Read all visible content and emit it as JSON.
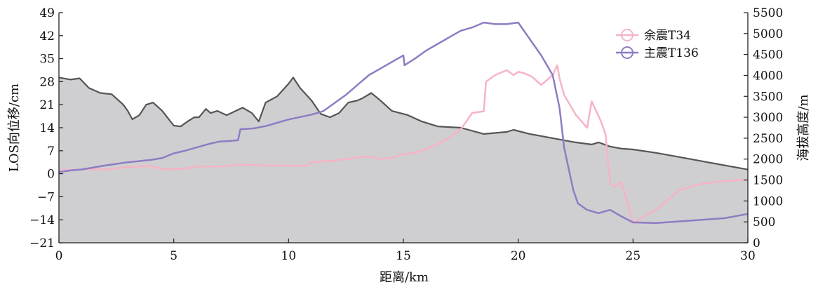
{
  "chart_data": {
    "type": "line",
    "xlabel": "距离/km",
    "ylabel_left": "LOS向位移/cm",
    "ylabel_right": "海拔高度/m",
    "xlim": [
      0,
      30
    ],
    "ylim_left": [
      -21,
      49
    ],
    "ylim_right": [
      0,
      5500
    ],
    "x_ticks": [
      0,
      5,
      10,
      15,
      20,
      25,
      30
    ],
    "y_left_ticks": [
      -21,
      -14,
      -7,
      0,
      7,
      14,
      21,
      28,
      35,
      42,
      49
    ],
    "y_right_ticks": [
      0,
      500,
      1000,
      1500,
      2000,
      2500,
      3000,
      3500,
      4000,
      4500,
      5000,
      5500
    ],
    "legend_position": "top-right",
    "colors": {
      "terrain_fill": "#cfcfd1",
      "terrain_line": "#555555",
      "aftershock": "#f6b3c6",
      "mainshock": "#8e7cc3"
    },
    "series": [
      {
        "name": "余震T34",
        "axis": "left",
        "x": [
          0,
          0.5,
          1,
          2,
          3,
          3.5,
          4,
          4.5,
          5,
          5.5,
          6,
          7,
          7.5,
          8,
          9,
          10,
          10.8,
          11,
          12,
          13,
          13.5,
          14,
          14.5,
          15,
          15.5,
          16,
          16.5,
          17,
          17.5,
          18,
          18.5,
          18.6,
          19,
          19.5,
          19.8,
          20,
          20.3,
          20.6,
          21,
          21.5,
          21.7,
          21.8,
          22,
          22.5,
          23,
          23.2,
          23.6,
          23.8,
          24,
          24.2,
          24.5,
          25,
          26,
          27,
          28,
          29,
          30
        ],
        "values": [
          1,
          1.2,
          1.3,
          1.3,
          2,
          2.2,
          2.3,
          1.5,
          1.3,
          1.6,
          2.2,
          2.2,
          2.5,
          2.8,
          2.5,
          2.5,
          2.3,
          3.5,
          4,
          5,
          5.3,
          4.5,
          4.8,
          6,
          6.3,
          7.5,
          9,
          11,
          13.5,
          18.5,
          19,
          28,
          30,
          31.5,
          30,
          31,
          30.5,
          29.5,
          27,
          30,
          33,
          29,
          24,
          18,
          14,
          22,
          16,
          12,
          -3,
          -4,
          -2.5,
          -15,
          -11,
          -5,
          -3,
          -2.2,
          -1.8
        ]
      },
      {
        "name": "主震T136",
        "axis": "left",
        "x": [
          0,
          0.5,
          1,
          2,
          3,
          4,
          4.5,
          5,
          5.5,
          6,
          6.5,
          7,
          7.5,
          7.8,
          7.9,
          8.5,
          9,
          9.5,
          10,
          11,
          11.5,
          12,
          12.5,
          13,
          13.5,
          14,
          14.5,
          15,
          15.05,
          15.5,
          16,
          16.5,
          17,
          17.5,
          18,
          18.5,
          19,
          19.5,
          20,
          20.5,
          21,
          21.5,
          21.8,
          22,
          22.4,
          22.6,
          23,
          23.5,
          24,
          24.5,
          25,
          26,
          27,
          28,
          29,
          30
        ],
        "values": [
          0.5,
          1,
          1.3,
          2.5,
          3.5,
          4.2,
          4.8,
          6.2,
          7,
          8,
          9,
          9.8,
          10,
          10.2,
          13.5,
          13.8,
          14.5,
          15.5,
          16.5,
          18,
          19,
          21.5,
          24,
          27,
          30,
          32,
          34,
          36,
          33,
          35,
          37.5,
          39.5,
          41.5,
          43.5,
          44.5,
          46,
          45.5,
          45.5,
          46,
          41,
          36,
          30,
          20,
          8,
          -5,
          -9,
          -11,
          -12,
          -11,
          -13,
          -14.8,
          -15,
          -14.5,
          -14,
          -13.5,
          -12.2
        ]
      },
      {
        "name": "",
        "axis": "right",
        "type": "area",
        "x": [
          0,
          0.5,
          0.9,
          1.3,
          1.8,
          2.3,
          2.8,
          3.0,
          3.2,
          3.5,
          3.8,
          4.1,
          4.5,
          5,
          5.3,
          5.6,
          5.9,
          6.1,
          6.4,
          6.6,
          6.9,
          7.3,
          7.5,
          8,
          8.4,
          8.7,
          9,
          9.5,
          10,
          10.2,
          10.5,
          11,
          11.4,
          11.8,
          12.2,
          12.6,
          13,
          13.2,
          13.6,
          14,
          14.5,
          15.2,
          15.8,
          16.5,
          17.5,
          18.5,
          19.5,
          19.8,
          20.5,
          21.5,
          22.5,
          23.2,
          23.5,
          24,
          24.5,
          25,
          26,
          27,
          28,
          29,
          30
        ],
        "values": [
          3950,
          3900,
          3930,
          3700,
          3580,
          3550,
          3300,
          3150,
          2950,
          3050,
          3300,
          3350,
          3150,
          2800,
          2780,
          2900,
          3000,
          3000,
          3200,
          3100,
          3150,
          3050,
          3100,
          3230,
          3100,
          2900,
          3350,
          3500,
          3800,
          3950,
          3700,
          3400,
          3080,
          3000,
          3100,
          3350,
          3400,
          3450,
          3580,
          3400,
          3150,
          3050,
          2900,
          2780,
          2750,
          2600,
          2650,
          2700,
          2600,
          2500,
          2400,
          2350,
          2400,
          2300,
          2250,
          2230,
          2150,
          2050,
          1950,
          1850,
          1750
        ]
      }
    ]
  }
}
